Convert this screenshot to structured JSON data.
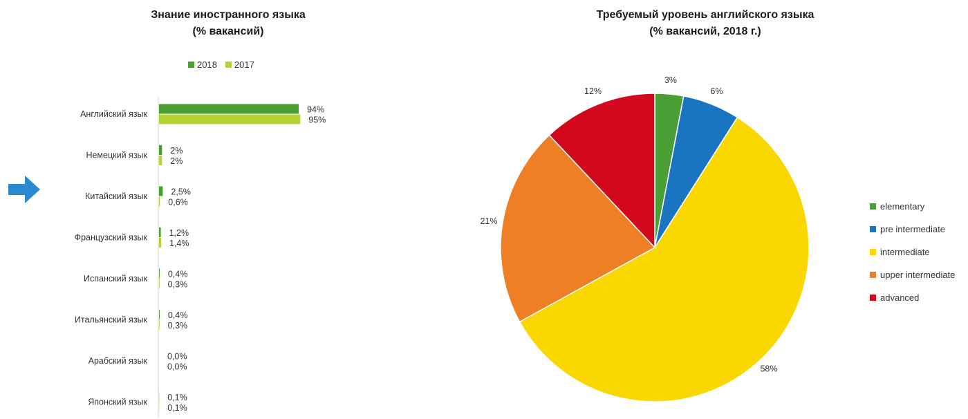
{
  "bar_chart": {
    "title_line1": "Знание иностранного языка",
    "title_line2": "(% вакансий)"
  },
  "pie_chart": {
    "title_line1": "Требуемый уровень английского языка",
    "title_line2": "(% вакансий, 2018 г.)"
  },
  "pointer_arrow_color": "#2a8ad1",
  "chart_data": [
    {
      "type": "bar",
      "orientation": "horizontal",
      "title": "Знание иностранного языка (% вакансий)",
      "categories": [
        "Английский язык",
        "Немецкий язык",
        "Китайский язык",
        "Французский язык",
        "Испанский язык",
        "Итальянский язык",
        "Арабский язык",
        "Японский язык"
      ],
      "series": [
        {
          "name": "2018",
          "color": "#4a9e2f",
          "values": [
            94,
            2,
            2.5,
            1.2,
            0.4,
            0.4,
            0.0,
            0.1
          ],
          "labels": [
            "94%",
            "2%",
            "2,5%",
            "1,2%",
            "0,4%",
            "0,4%",
            "0,0%",
            "0,1%"
          ]
        },
        {
          "name": "2017",
          "color": "#b5d334",
          "values": [
            95,
            2,
            0.6,
            1.4,
            0.3,
            0.3,
            0.0,
            0.1
          ],
          "labels": [
            "95%",
            "2%",
            "0,6%",
            "1,4%",
            "0,3%",
            "0,3%",
            "0,0%",
            "0,1%"
          ]
        }
      ],
      "xlim": [
        0,
        100
      ],
      "legend_position": "top",
      "grid": false
    },
    {
      "type": "pie",
      "title": "Требуемый уровень английского языка (% вакансий, 2018 г.)",
      "slices": [
        {
          "name": "elementary",
          "value": 3,
          "label": "3%",
          "color": "#4a9e35"
        },
        {
          "name": "pre intermediate",
          "value": 6,
          "label": "6%",
          "color": "#1a75c1"
        },
        {
          "name": "intermediate",
          "value": 58,
          "label": "58%",
          "color": "#fbd700"
        },
        {
          "name": "upper intermediate",
          "value": 21,
          "label": "21%",
          "color": "#ef7f24"
        },
        {
          "name": "advanced",
          "value": 12,
          "label": "12%",
          "color": "#d2081f"
        }
      ],
      "start_angle_deg": 0,
      "direction": "clockwise",
      "legend_position": "right"
    }
  ]
}
